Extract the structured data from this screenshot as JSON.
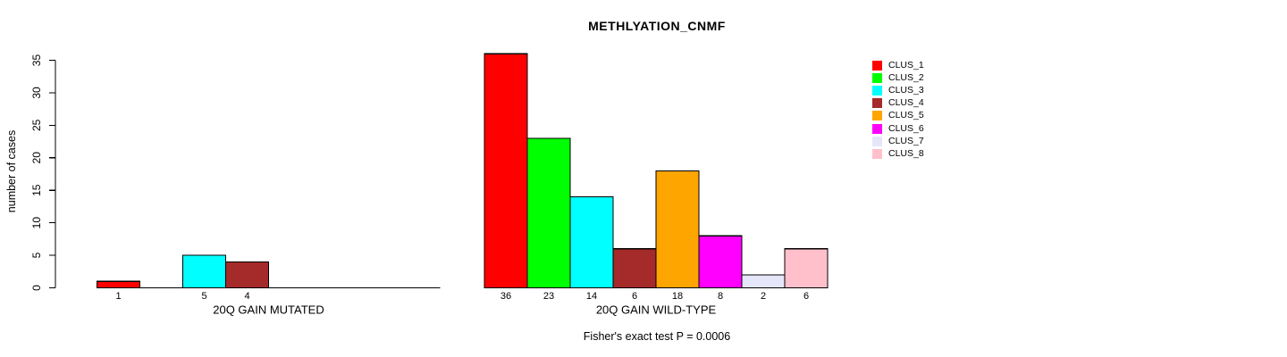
{
  "chart_data": {
    "type": "bar",
    "title": "METHLYATION_CNMF",
    "ylabel": "number of cases",
    "xlabel": "",
    "ylim": [
      0,
      35
    ],
    "y_ticks": [
      0,
      5,
      10,
      15,
      20,
      25,
      30,
      35
    ],
    "grid": false,
    "legend_position": "right",
    "categories": [
      "CLUS_1",
      "CLUS_2",
      "CLUS_3",
      "CLUS_4",
      "CLUS_5",
      "CLUS_6",
      "CLUS_7",
      "CLUS_8"
    ],
    "colors": [
      "#ff0000",
      "#00ff00",
      "#00ffff",
      "#a52a2a",
      "#ffa500",
      "#ff00ff",
      "#e6e6fa",
      "#ffc0cb"
    ],
    "groups": [
      {
        "label": "20Q GAIN MUTATED",
        "values": [
          1,
          0,
          5,
          4,
          0,
          0,
          0,
          0
        ]
      },
      {
        "label": "20Q GAIN WILD-TYPE",
        "values": [
          36,
          23,
          14,
          6,
          18,
          8,
          2,
          6
        ]
      }
    ],
    "bar_value_labels_shown_only_for_nonzero": true,
    "annotation": "Fisher's exact test P = 0.0006"
  },
  "legend": {
    "items": [
      {
        "label": "CLUS_1",
        "color": "#ff0000"
      },
      {
        "label": "CLUS_2",
        "color": "#00ff00"
      },
      {
        "label": "CLUS_3",
        "color": "#00ffff"
      },
      {
        "label": "CLUS_4",
        "color": "#a52a2a"
      },
      {
        "label": "CLUS_5",
        "color": "#ffa500"
      },
      {
        "label": "CLUS_6",
        "color": "#ff00ff"
      },
      {
        "label": "CLUS_7",
        "color": "#e6e6fa"
      },
      {
        "label": "CLUS_8",
        "color": "#ffc0cb"
      }
    ]
  }
}
